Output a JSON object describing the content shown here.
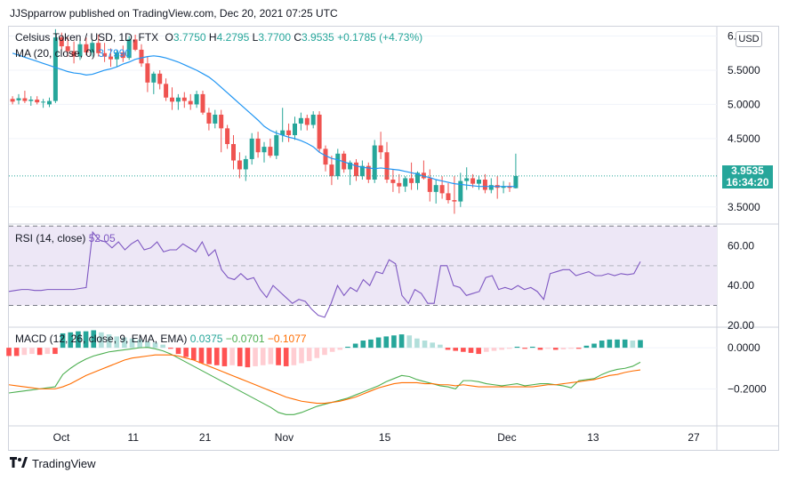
{
  "header": {
    "publisher": "JJSpparrow published on TradingView.com, Dec 20, 2021 07:25 UTC"
  },
  "legend": {
    "symbol": "Celsius Token / USD, 1D, FTX",
    "o_label": "O",
    "o": "3.7750",
    "h_label": "H",
    "h": "4.2795",
    "l_label": "L",
    "l": "3.7700",
    "c_label": "C",
    "c": "3.9535",
    "change": "+0.1785 (+4.73%)",
    "ma_label": "MA (20, close, 0)",
    "ma_value": "3.7990"
  },
  "currency_button": "USD",
  "last_price": {
    "price": "3.9535",
    "countdown": "16:34:20"
  },
  "rsi_legend": {
    "label": "RSI (14, close)",
    "value": "52.05"
  },
  "macd_legend": {
    "label": "MACD (12, 26, close, 9, EMA, EMA)",
    "hist": "0.0375",
    "macd": "−0.0701",
    "signal": "−0.1077"
  },
  "footer": {
    "brand": "TradingView"
  },
  "colors": {
    "up": "#26a69a",
    "down": "#ef5350",
    "ma": "#2196f3",
    "rsi": "#7e57c2",
    "macd": "#4caf50",
    "signal": "#ff6d00",
    "rsi_band": "#ede7f6"
  },
  "chart_data": [
    {
      "type": "candlestick",
      "title": "Celsius Token / USD, 1D, FTX",
      "x_tick_labels": [
        "Oct",
        "11",
        "21",
        "Nov",
        "15",
        "Dec",
        "13",
        "27"
      ],
      "y_tick_labels": [
        "6.0000",
        "5.5000",
        "5.0000",
        "4.5000",
        "3.5000"
      ],
      "ylim": [
        3.25,
        6.15
      ],
      "x_start_index": -6,
      "candles": [
        [
          5.08,
          5.12,
          5.0,
          5.04
        ],
        [
          5.06,
          5.15,
          5.0,
          5.09
        ],
        [
          5.09,
          5.2,
          5.02,
          5.05
        ],
        [
          5.05,
          5.12,
          4.98,
          5.07
        ],
        [
          5.07,
          5.12,
          5.0,
          5.03
        ],
        [
          5.03,
          5.08,
          4.95,
          5.04
        ],
        [
          5.0,
          5.1,
          4.96,
          5.05
        ],
        [
          5.05,
          6.1,
          5.02,
          5.98
        ],
        [
          5.98,
          6.05,
          5.8,
          5.85
        ],
        [
          5.85,
          5.98,
          5.7,
          5.78
        ],
        [
          5.78,
          5.92,
          5.6,
          5.7
        ],
        [
          5.7,
          5.95,
          5.65,
          5.88
        ],
        [
          5.88,
          5.98,
          5.72,
          5.76
        ],
        [
          5.76,
          5.95,
          5.7,
          5.9
        ],
        [
          5.9,
          6.02,
          5.7,
          5.75
        ],
        [
          5.75,
          5.9,
          5.62,
          5.7
        ],
        [
          5.7,
          5.82,
          5.55,
          5.66
        ],
        [
          5.66,
          5.8,
          5.55,
          5.76
        ],
        [
          5.76,
          5.86,
          5.62,
          5.68
        ],
        [
          5.68,
          6.0,
          5.65,
          5.95
        ],
        [
          5.95,
          6.02,
          5.78,
          5.8
        ],
        [
          5.8,
          5.88,
          5.55,
          5.6
        ],
        [
          5.6,
          5.7,
          5.18,
          5.32
        ],
        [
          5.32,
          5.48,
          5.15,
          5.45
        ],
        [
          5.45,
          5.5,
          5.22,
          5.3
        ],
        [
          5.3,
          5.38,
          5.05,
          5.1
        ],
        [
          5.1,
          5.25,
          4.92,
          5.04
        ],
        [
          5.04,
          5.15,
          4.92,
          5.1
        ],
        [
          5.1,
          5.18,
          4.95,
          5.05
        ],
        [
          5.05,
          5.15,
          4.92,
          5.0
        ],
        [
          5.0,
          5.2,
          4.95,
          5.15
        ],
        [
          5.15,
          5.2,
          4.85,
          4.88
        ],
        [
          4.88,
          4.95,
          4.62,
          4.72
        ],
        [
          4.72,
          4.92,
          4.65,
          4.85
        ],
        [
          4.85,
          4.92,
          4.3,
          4.65
        ],
        [
          4.65,
          4.7,
          4.35,
          4.42
        ],
        [
          4.42,
          4.55,
          4.05,
          4.18
        ],
        [
          4.18,
          4.3,
          3.92,
          4.05
        ],
        [
          4.05,
          4.25,
          3.88,
          4.2
        ],
        [
          4.2,
          4.58,
          4.12,
          4.5
        ],
        [
          4.5,
          4.6,
          4.22,
          4.3
        ],
        [
          4.3,
          4.45,
          4.15,
          4.38
        ],
        [
          4.38,
          4.5,
          4.22,
          4.25
        ],
        [
          4.25,
          4.62,
          4.2,
          4.55
        ],
        [
          4.55,
          4.95,
          4.45,
          4.62
        ],
        [
          4.62,
          4.72,
          4.45,
          4.55
        ],
        [
          4.55,
          4.82,
          4.48,
          4.72
        ],
        [
          4.72,
          4.88,
          4.62,
          4.8
        ],
        [
          4.8,
          4.85,
          4.62,
          4.7
        ],
        [
          4.7,
          4.9,
          4.65,
          4.85
        ],
        [
          4.85,
          4.9,
          4.3,
          4.35
        ],
        [
          4.35,
          4.4,
          4.02,
          4.12
        ],
        [
          4.12,
          4.25,
          3.82,
          3.95
        ],
        [
          3.95,
          4.35,
          3.9,
          4.28
        ],
        [
          4.28,
          4.32,
          4.0,
          4.05
        ],
        [
          4.05,
          4.18,
          3.82,
          4.15
        ],
        [
          4.15,
          4.2,
          3.88,
          3.95
        ],
        [
          3.95,
          4.18,
          3.9,
          4.1
        ],
        [
          4.1,
          4.15,
          3.85,
          3.9
        ],
        [
          3.9,
          4.48,
          3.85,
          4.4
        ],
        [
          4.4,
          4.6,
          4.2,
          4.3
        ],
        [
          4.3,
          4.45,
          3.85,
          3.9
        ],
        [
          3.9,
          4.05,
          3.72,
          3.85
        ],
        [
          3.85,
          3.98,
          3.7,
          3.8
        ],
        [
          3.8,
          3.95,
          3.72,
          3.92
        ],
        [
          3.92,
          4.15,
          3.75,
          3.85
        ],
        [
          3.85,
          4.02,
          3.75,
          4.0
        ],
        [
          4.0,
          4.18,
          3.9,
          3.92
        ],
        [
          3.92,
          4.05,
          3.58,
          3.72
        ],
        [
          3.72,
          3.9,
          3.55,
          3.82
        ],
        [
          3.82,
          3.95,
          3.62,
          3.7
        ],
        [
          3.7,
          3.85,
          3.55,
          3.6
        ],
        [
          3.6,
          3.95,
          3.4,
          3.58
        ],
        [
          3.58,
          4.0,
          3.5,
          3.88
        ],
        [
          3.88,
          4.08,
          3.75,
          3.92
        ],
        [
          3.92,
          3.98,
          3.78,
          3.84
        ],
        [
          3.84,
          3.96,
          3.75,
          3.9
        ],
        [
          3.9,
          3.98,
          3.7,
          3.75
        ],
        [
          3.75,
          3.92,
          3.7,
          3.82
        ],
        [
          3.82,
          3.95,
          3.62,
          3.78
        ],
        [
          3.78,
          3.88,
          3.7,
          3.8
        ],
        [
          3.8,
          3.86,
          3.72,
          3.78
        ],
        [
          3.775,
          4.2795,
          3.77,
          3.9535
        ]
      ],
      "ma": [
        5.75,
        5.72,
        5.69,
        5.66,
        5.63,
        5.6,
        5.57,
        5.54,
        5.51,
        5.48,
        5.46,
        5.45,
        5.43,
        5.44,
        5.47,
        5.5,
        5.52,
        5.55,
        5.59,
        5.62,
        5.66,
        5.68,
        5.7,
        5.71,
        5.7,
        5.68,
        5.65,
        5.62,
        5.58,
        5.54,
        5.5,
        5.45,
        5.4,
        5.33,
        5.25,
        5.17,
        5.09,
        5.01,
        4.93,
        4.85,
        4.77,
        4.68,
        4.62,
        4.58,
        4.55,
        4.52,
        4.5,
        4.47,
        4.43,
        4.38,
        4.3,
        4.25,
        4.21,
        4.19,
        4.16,
        4.13,
        4.1,
        4.08,
        4.07,
        4.06,
        4.07,
        4.06,
        4.05,
        4.04,
        4.02,
        4.0,
        3.98,
        3.95,
        3.93,
        3.9,
        3.88,
        3.86,
        3.84,
        3.83,
        3.82,
        3.81,
        3.8,
        3.8,
        3.8,
        3.8,
        3.8,
        3.8,
        3.799
      ]
    },
    {
      "type": "line",
      "title": "RSI (14, close)",
      "y_tick_labels": [
        "60.00",
        "40.00",
        "20.00"
      ],
      "ylim": [
        19,
        71
      ],
      "band": [
        30,
        70
      ],
      "midline": 50,
      "series": [
        {
          "name": "RSI",
          "values": [
            37,
            37.5,
            38,
            38,
            37.5,
            37.5,
            38,
            38,
            38,
            38,
            38,
            38.5,
            39,
            67,
            63,
            62,
            59,
            62,
            58,
            61,
            63,
            58,
            59,
            62,
            57,
            58,
            58,
            61,
            59,
            57,
            62,
            55,
            58,
            48,
            44,
            43,
            46,
            43,
            44,
            38,
            34,
            40,
            37,
            34,
            31,
            33,
            32,
            28,
            25,
            24,
            31,
            40,
            35,
            39,
            37,
            43,
            40,
            47,
            46,
            53,
            51,
            35,
            31,
            38,
            36,
            31,
            31,
            50,
            50,
            40,
            39,
            35,
            36,
            37,
            44,
            45,
            38,
            39,
            38,
            40,
            38,
            39,
            37,
            33,
            46,
            47,
            48,
            48,
            45,
            46,
            47,
            45,
            45,
            46,
            45,
            46,
            45.5,
            46,
            52.05
          ]
        }
      ]
    },
    {
      "type": "bar+line",
      "title": "MACD (12, 26, close, 9, EMA, EMA)",
      "y_tick_labels": [
        "0.0000",
        "−0.2000"
      ],
      "ylim": [
        -0.38,
        0.1
      ],
      "series": [
        {
          "name": "Histogram",
          "values": [
            -0.04,
            -0.04,
            -0.035,
            -0.03,
            -0.035,
            -0.03,
            -0.03,
            0.07,
            0.075,
            0.08,
            0.08,
            0.085,
            0.075,
            0.065,
            0.055,
            0.05,
            0.045,
            0.04,
            0.03,
            0.025,
            0.015,
            -0.005,
            -0.03,
            -0.045,
            -0.06,
            -0.075,
            -0.08,
            -0.085,
            -0.09,
            -0.085,
            -0.09,
            -0.095,
            -0.09,
            -0.085,
            -0.08,
            -0.085,
            -0.09,
            -0.085,
            -0.075,
            -0.065,
            -0.05,
            -0.035,
            -0.02,
            -0.01,
            0.005,
            0.02,
            0.035,
            0.04,
            0.05,
            0.055,
            0.06,
            0.065,
            0.06,
            0.045,
            0.035,
            0.025,
            0.015,
            -0.01,
            -0.015,
            -0.02,
            -0.025,
            -0.03,
            -0.02,
            -0.015,
            -0.01,
            -0.005,
            0.005,
            -0.005,
            0.005,
            -0.01,
            -0.005,
            -0.01,
            -0.008,
            -0.005,
            -0.005,
            0.01,
            0.02,
            0.035,
            0.04,
            0.04,
            0.04,
            0.035,
            0.0375
          ]
        },
        {
          "name": "MACD",
          "values": [
            -0.22,
            -0.215,
            -0.21,
            -0.205,
            -0.2,
            -0.195,
            -0.19,
            -0.13,
            -0.1,
            -0.075,
            -0.055,
            -0.04,
            -0.03,
            -0.02,
            -0.015,
            -0.01,
            -0.005,
            0.0,
            0.002,
            -0.005,
            -0.015,
            -0.03,
            -0.05,
            -0.07,
            -0.09,
            -0.11,
            -0.13,
            -0.15,
            -0.17,
            -0.19,
            -0.21,
            -0.23,
            -0.25,
            -0.27,
            -0.29,
            -0.315,
            -0.325,
            -0.325,
            -0.315,
            -0.3,
            -0.285,
            -0.275,
            -0.265,
            -0.255,
            -0.245,
            -0.23,
            -0.215,
            -0.2,
            -0.185,
            -0.165,
            -0.15,
            -0.135,
            -0.14,
            -0.155,
            -0.165,
            -0.175,
            -0.185,
            -0.19,
            -0.2,
            -0.16,
            -0.16,
            -0.165,
            -0.175,
            -0.18,
            -0.185,
            -0.18,
            -0.175,
            -0.185,
            -0.18,
            -0.175,
            -0.175,
            -0.18,
            -0.185,
            -0.195,
            -0.16,
            -0.155,
            -0.15,
            -0.13,
            -0.115,
            -0.105,
            -0.1,
            -0.09,
            -0.0701
          ]
        },
        {
          "name": "Signal",
          "values": [
            -0.18,
            -0.185,
            -0.19,
            -0.195,
            -0.2,
            -0.2,
            -0.2,
            -0.19,
            -0.175,
            -0.155,
            -0.135,
            -0.12,
            -0.105,
            -0.09,
            -0.075,
            -0.06,
            -0.05,
            -0.045,
            -0.04,
            -0.035,
            -0.035,
            -0.035,
            -0.04,
            -0.05,
            -0.06,
            -0.075,
            -0.09,
            -0.105,
            -0.12,
            -0.135,
            -0.15,
            -0.165,
            -0.18,
            -0.195,
            -0.21,
            -0.225,
            -0.24,
            -0.25,
            -0.26,
            -0.265,
            -0.27,
            -0.27,
            -0.265,
            -0.26,
            -0.25,
            -0.24,
            -0.225,
            -0.21,
            -0.195,
            -0.185,
            -0.175,
            -0.17,
            -0.17,
            -0.17,
            -0.175,
            -0.175,
            -0.18,
            -0.18,
            -0.185,
            -0.18,
            -0.185,
            -0.19,
            -0.19,
            -0.19,
            -0.19,
            -0.19,
            -0.19,
            -0.19,
            -0.19,
            -0.185,
            -0.18,
            -0.18,
            -0.175,
            -0.17,
            -0.165,
            -0.16,
            -0.155,
            -0.145,
            -0.135,
            -0.13,
            -0.12,
            -0.113,
            -0.1077
          ]
        }
      ]
    }
  ]
}
